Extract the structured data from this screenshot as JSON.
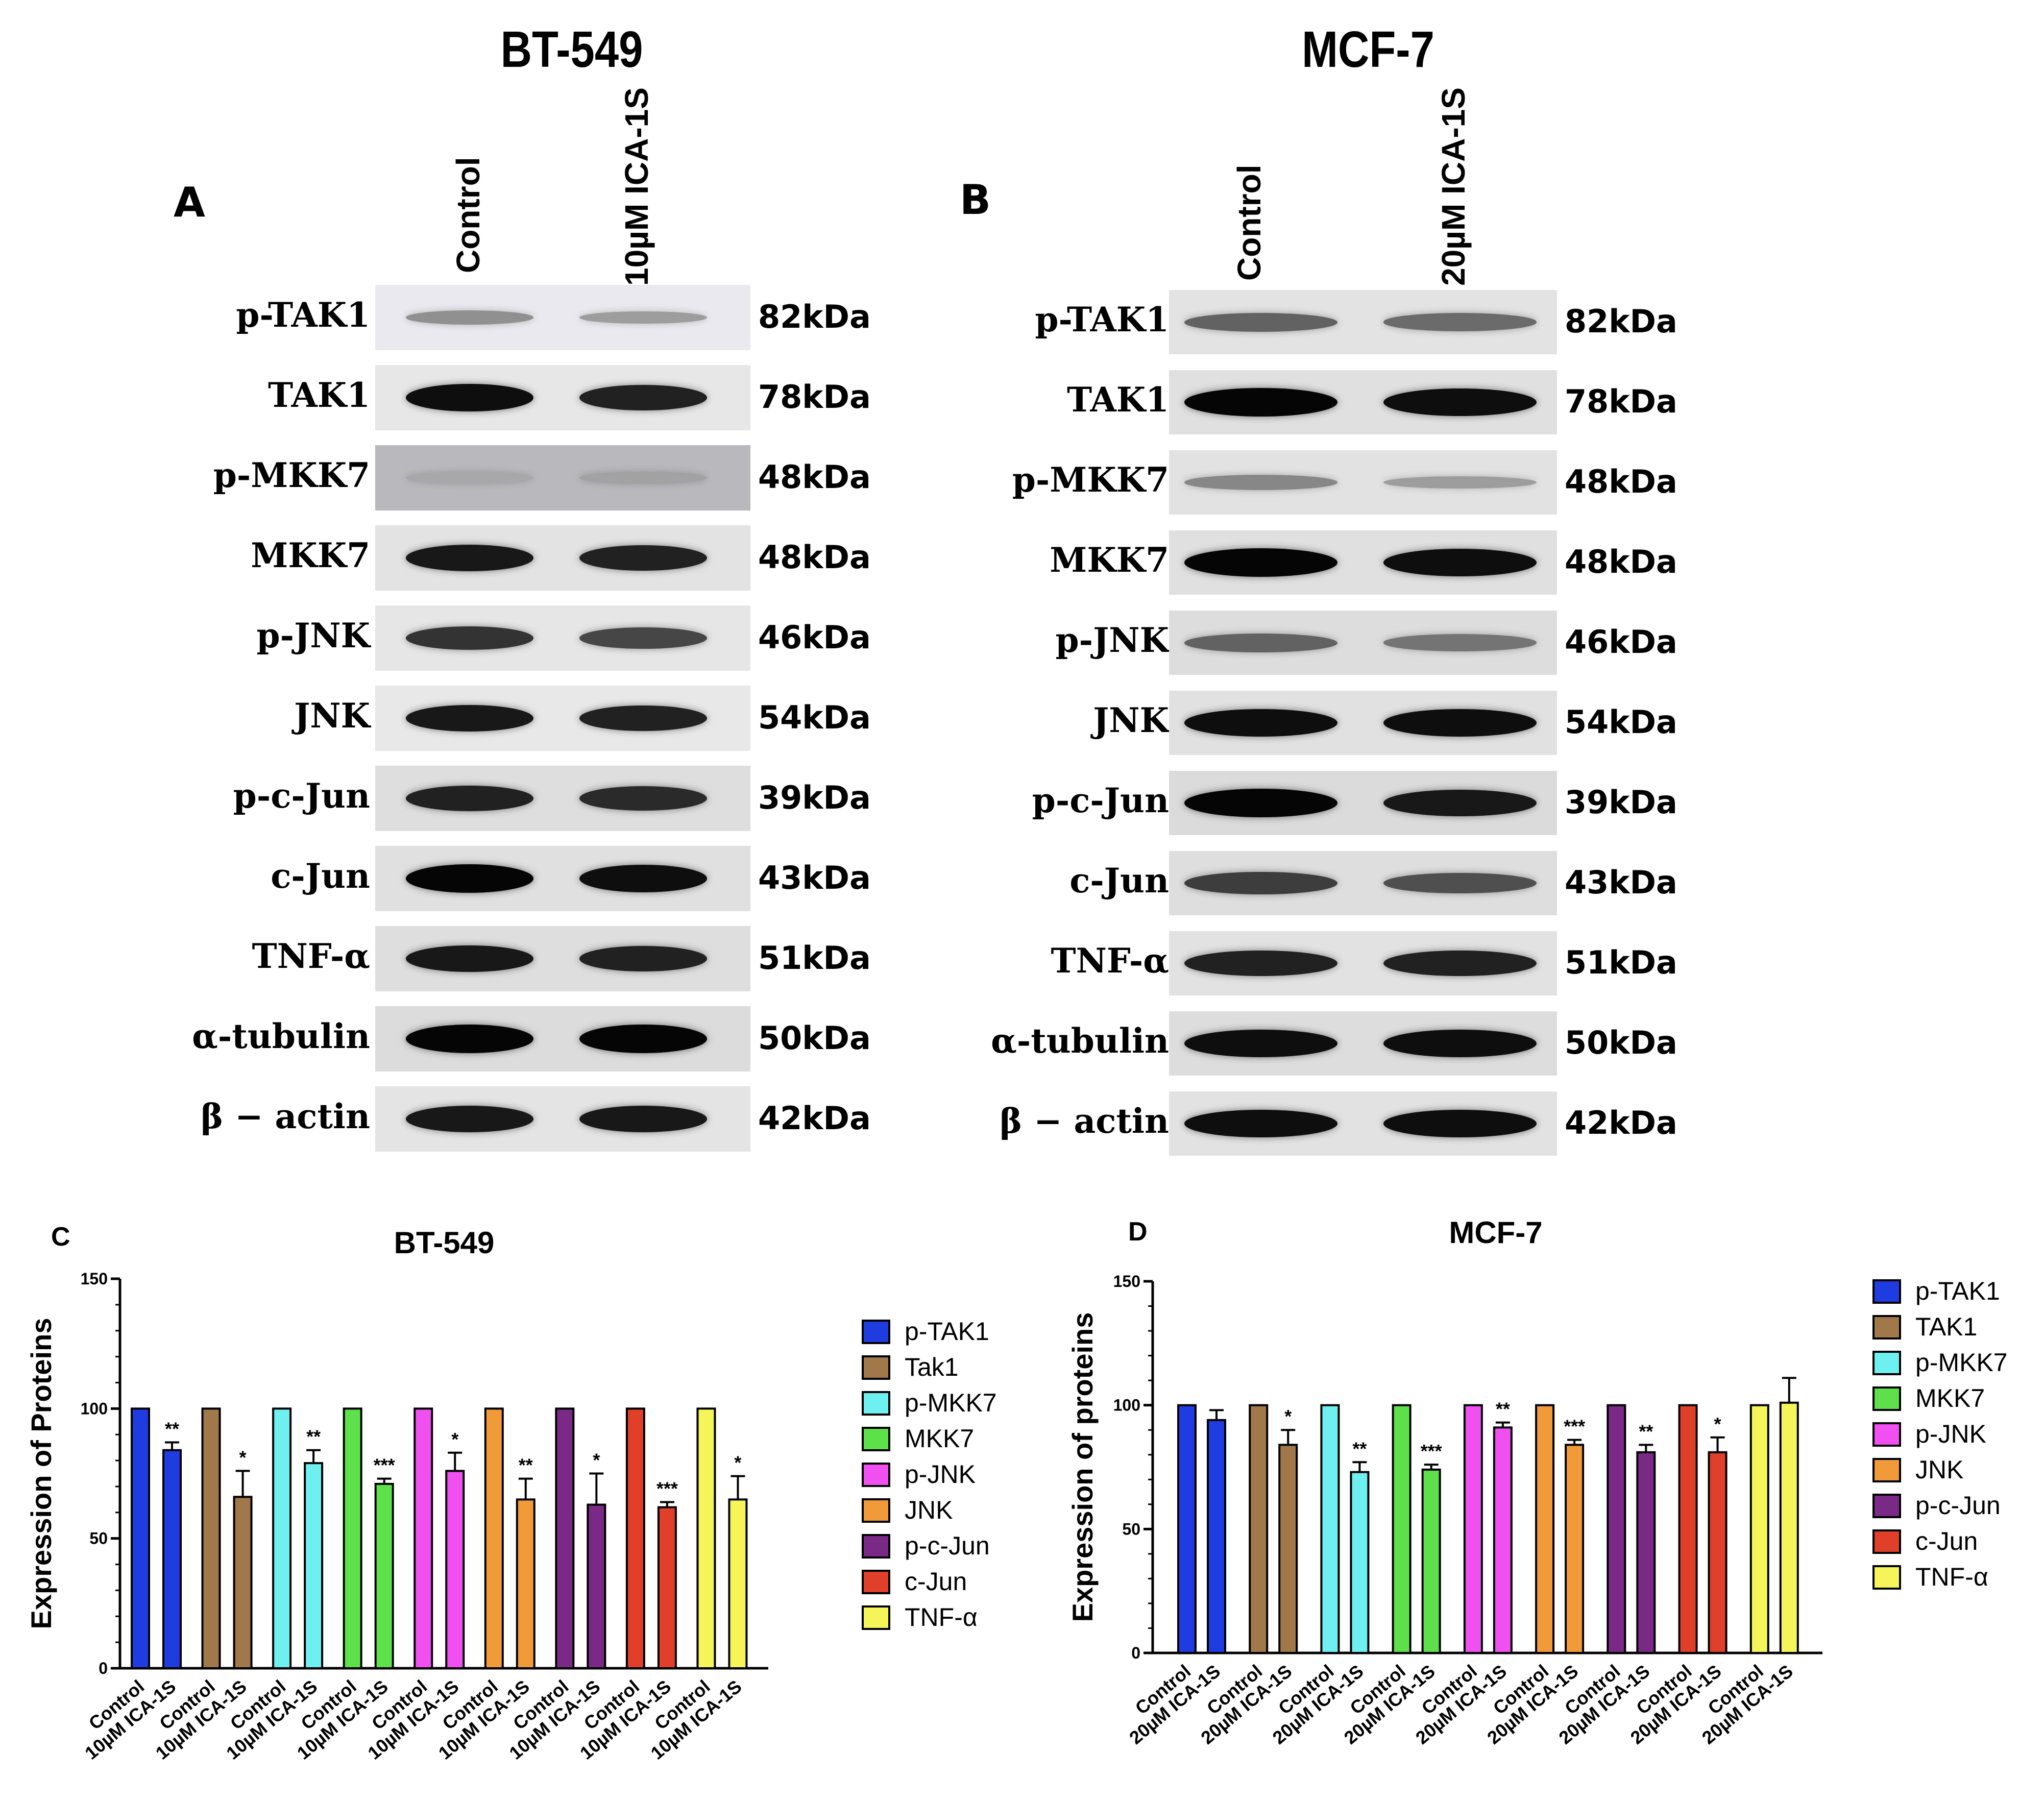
{
  "titles": {
    "left": "BT-549",
    "right": "MCF-7"
  },
  "panel_letters": {
    "a": "A",
    "b": "B",
    "c": "C",
    "d": "D"
  },
  "lanes": {
    "a": [
      "Control",
      "10µM ICA-1S"
    ],
    "b": [
      "Control",
      "20µM ICA-1S"
    ]
  },
  "blot_a": {
    "rows": [
      {
        "label": "p-TAK1",
        "kda": "82kDa",
        "bg": "#e9e9ef",
        "band": [
          0.25,
          0.18
        ]
      },
      {
        "label": "TAK1",
        "kda": "78kDa",
        "bg": "#e7e7e7",
        "band": [
          0.95,
          0.85
        ]
      },
      {
        "label": "p-MKK7",
        "kda": "48kDa",
        "bg": "#b9b9bd",
        "band": [
          0.12,
          0.15
        ]
      },
      {
        "label": "MKK7",
        "kda": "48kDa",
        "bg": "#e3e3e3",
        "band": [
          0.9,
          0.85
        ]
      },
      {
        "label": "p-JNK",
        "kda": "46kDa",
        "bg": "#e6e6e6",
        "band": [
          0.75,
          0.65
        ]
      },
      {
        "label": "JNK",
        "kda": "54kDa",
        "bg": "#e8e8e8",
        "band": [
          0.9,
          0.85
        ]
      },
      {
        "label": "p-c-Jun",
        "kda": "39kDa",
        "bg": "#dedede",
        "band": [
          0.85,
          0.8
        ]
      },
      {
        "label": "c-Jun",
        "kda": "43kDa",
        "bg": "#e0e0e0",
        "band": [
          1.0,
          0.95
        ]
      },
      {
        "label": "TNF-α",
        "kda": "51kDa",
        "bg": "#dedede",
        "band": [
          0.9,
          0.85
        ]
      },
      {
        "label": "α-tubulin",
        "kda": "50kDa",
        "bg": "#dcdcdc",
        "band": [
          1.0,
          1.0
        ]
      },
      {
        "label": "β − actin",
        "kda": "42kDa",
        "bg": "#e4e4e4",
        "band": [
          0.9,
          0.9
        ]
      }
    ]
  },
  "blot_b": {
    "rows": [
      {
        "label": "p-TAK1",
        "kda": "82kDa",
        "bg": "#e3e3e3",
        "band": [
          0.5,
          0.45
        ]
      },
      {
        "label": "TAK1",
        "kda": "78kDa",
        "bg": "#e0e0e0",
        "band": [
          1.0,
          0.95
        ]
      },
      {
        "label": "p-MKK7",
        "kda": "48kDa",
        "bg": "#e2e2e2",
        "band": [
          0.3,
          0.18
        ]
      },
      {
        "label": "MKK7",
        "kda": "48kDa",
        "bg": "#e0e0e0",
        "band": [
          1.0,
          0.95
        ]
      },
      {
        "label": "p-JNK",
        "kda": "46kDa",
        "bg": "#dddddd",
        "band": [
          0.5,
          0.4
        ]
      },
      {
        "label": "JNK",
        "kda": "54kDa",
        "bg": "#e1e1e1",
        "band": [
          0.95,
          0.95
        ]
      },
      {
        "label": "p-c-Jun",
        "kda": "39kDa",
        "bg": "#dbdbdb",
        "band": [
          1.0,
          0.9
        ]
      },
      {
        "label": "c-Jun",
        "kda": "43kDa",
        "bg": "#dedede",
        "band": [
          0.7,
          0.6
        ]
      },
      {
        "label": "TNF-α",
        "kda": "51kDa",
        "bg": "#e2e2e2",
        "band": [
          0.85,
          0.85
        ]
      },
      {
        "label": "α-tubulin",
        "kda": "50kDa",
        "bg": "#dddddd",
        "band": [
          0.95,
          0.95
        ]
      },
      {
        "label": "β − actin",
        "kda": "42kDa",
        "bg": "#e2e2e2",
        "band": [
          0.95,
          0.95
        ]
      }
    ]
  },
  "chart_data": [
    {
      "type": "bar",
      "panel": "C",
      "title": "BT-549",
      "ylabel": "Expression of Proteins",
      "ylim": [
        0,
        150
      ],
      "yticks": [
        0,
        50,
        100,
        150
      ],
      "categories": [
        "Control",
        "10µM ICA-1S"
      ],
      "legend_position": "right",
      "series": [
        {
          "name": "p-TAK1",
          "color": "#1f3ce0",
          "values": [
            100,
            84
          ],
          "errors": [
            0,
            3
          ],
          "sig": "**"
        },
        {
          "name": "Tak1",
          "color": "#a0784a",
          "values": [
            100,
            66
          ],
          "errors": [
            0,
            10
          ],
          "sig": "*"
        },
        {
          "name": "p-MKK7",
          "color": "#6ff0f0",
          "values": [
            100,
            79
          ],
          "errors": [
            0,
            5
          ],
          "sig": "**"
        },
        {
          "name": "MKK7",
          "color": "#5ee04a",
          "values": [
            100,
            71
          ],
          "errors": [
            0,
            2
          ],
          "sig": "***"
        },
        {
          "name": "p-JNK",
          "color": "#f050f0",
          "values": [
            100,
            76
          ],
          "errors": [
            0,
            7
          ],
          "sig": "*"
        },
        {
          "name": "JNK",
          "color": "#f09a3a",
          "values": [
            100,
            65
          ],
          "errors": [
            0,
            8
          ],
          "sig": "**"
        },
        {
          "name": "p-c-Jun",
          "color": "#7a2a86",
          "values": [
            100,
            63
          ],
          "errors": [
            0,
            12
          ],
          "sig": "*"
        },
        {
          "name": "c-Jun",
          "color": "#e0402a",
          "values": [
            100,
            62
          ],
          "errors": [
            0,
            2
          ],
          "sig": "***"
        },
        {
          "name": "TNF-α",
          "color": "#f5f55a",
          "values": [
            100,
            65
          ],
          "errors": [
            0,
            9
          ],
          "sig": "*"
        }
      ]
    },
    {
      "type": "bar",
      "panel": "D",
      "title": "MCF-7",
      "ylabel": "Expression of proteins",
      "ylim": [
        0,
        150
      ],
      "yticks": [
        0,
        50,
        100,
        150
      ],
      "categories": [
        "Control",
        "20µM ICA-1S"
      ],
      "legend_position": "right",
      "series": [
        {
          "name": "p-TAK1",
          "color": "#1f3ce0",
          "values": [
            100,
            94
          ],
          "errors": [
            0,
            4
          ],
          "sig": ""
        },
        {
          "name": "TAK1",
          "color": "#a0784a",
          "values": [
            100,
            84
          ],
          "errors": [
            0,
            6
          ],
          "sig": "*"
        },
        {
          "name": "p-MKK7",
          "color": "#6ff0f0",
          "values": [
            100,
            73
          ],
          "errors": [
            0,
            4
          ],
          "sig": "**"
        },
        {
          "name": "MKK7",
          "color": "#5ee04a",
          "values": [
            100,
            74
          ],
          "errors": [
            0,
            2
          ],
          "sig": "***"
        },
        {
          "name": "p-JNK",
          "color": "#f050f0",
          "values": [
            100,
            91
          ],
          "errors": [
            0,
            2
          ],
          "sig": "**"
        },
        {
          "name": "JNK",
          "color": "#f09a3a",
          "values": [
            100,
            84
          ],
          "errors": [
            0,
            2
          ],
          "sig": "***"
        },
        {
          "name": "p-c-Jun",
          "color": "#7a2a86",
          "values": [
            100,
            81
          ],
          "errors": [
            0,
            3
          ],
          "sig": "**"
        },
        {
          "name": "c-Jun",
          "color": "#e0402a",
          "values": [
            100,
            81
          ],
          "errors": [
            0,
            6
          ],
          "sig": "*"
        },
        {
          "name": "TNF-α",
          "color": "#f5f55a",
          "values": [
            100,
            101
          ],
          "errors": [
            0,
            10
          ],
          "sig": ""
        }
      ]
    }
  ]
}
